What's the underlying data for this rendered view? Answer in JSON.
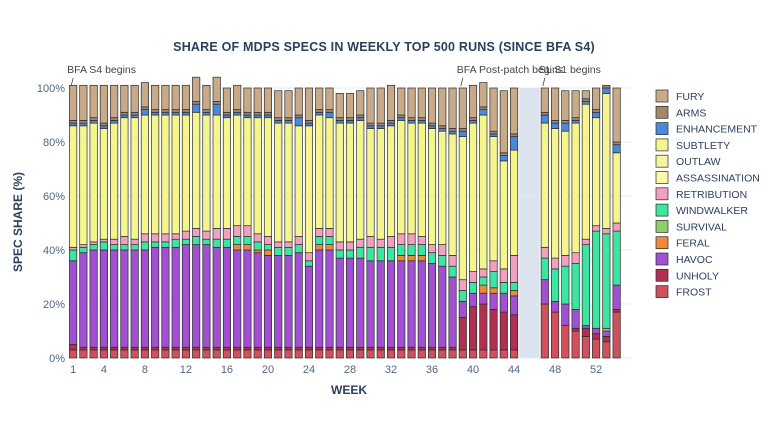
{
  "chart_data": {
    "type": "bar",
    "stacked": true,
    "title": "SHARE OF MDPS SPECS IN WEEKLY TOP 500 RUNS (SINCE BFA S4)",
    "xlabel": "WEEK",
    "ylabel": "SPEC SHARE (%)",
    "ylim": [
      0,
      100
    ],
    "xlim": [
      0.5,
      55.5
    ],
    "x_ticks": [
      1,
      4,
      8,
      12,
      16,
      20,
      24,
      28,
      32,
      36,
      40,
      44,
      48,
      52
    ],
    "y_ticks": [
      0,
      20,
      40,
      60,
      80,
      100
    ],
    "y_tick_labels": [
      "0%",
      "20%",
      "40%",
      "60%",
      "80%",
      "100%"
    ],
    "shaded_gap": [
      45,
      46
    ],
    "annotations": [
      {
        "text": "BFA S4 begins",
        "x": 1
      },
      {
        "text": "BFA Post-patch begins",
        "x": 39
      },
      {
        "text": "SL S1 begins",
        "x": 47
      }
    ],
    "legend_position": "right",
    "weeks": [
      1,
      2,
      3,
      4,
      5,
      6,
      7,
      8,
      9,
      10,
      11,
      12,
      13,
      14,
      15,
      16,
      17,
      18,
      19,
      20,
      21,
      22,
      23,
      24,
      25,
      26,
      27,
      28,
      29,
      30,
      31,
      32,
      33,
      34,
      35,
      36,
      37,
      38,
      39,
      40,
      41,
      42,
      43,
      44,
      47,
      48,
      49,
      50,
      51,
      52,
      53,
      54
    ],
    "series": [
      {
        "name": "FROST",
        "color": "#d0505c",
        "values": [
          3,
          3,
          3,
          3,
          3,
          3,
          3,
          3,
          3,
          3,
          3,
          3,
          3,
          3,
          3,
          3,
          3,
          3,
          3,
          3,
          3,
          3,
          3,
          3,
          3,
          3,
          3,
          3,
          3,
          3,
          3,
          3,
          3,
          3,
          3,
          3,
          3,
          3,
          3,
          3,
          3,
          3,
          3,
          3,
          20,
          17,
          12,
          10,
          8,
          7,
          6,
          17
        ]
      },
      {
        "name": "UNHOLY",
        "color": "#b03050",
        "values": [
          2,
          1,
          1,
          1,
          1,
          1,
          1,
          1,
          1,
          1,
          1,
          1,
          1,
          1,
          1,
          1,
          1,
          1,
          1,
          1,
          1,
          1,
          1,
          1,
          1,
          1,
          1,
          1,
          1,
          1,
          1,
          1,
          1,
          1,
          1,
          1,
          1,
          1,
          12,
          16,
          17,
          15,
          14,
          13,
          0,
          0,
          0,
          1,
          3,
          2,
          2,
          1
        ]
      },
      {
        "name": "HAVOC",
        "color": "#a050d0",
        "values": [
          31,
          35,
          36,
          36,
          36,
          36,
          36,
          36,
          37,
          37,
          37,
          38,
          38,
          38,
          37,
          37,
          36,
          36,
          35,
          34,
          34,
          34,
          35,
          30,
          36,
          36,
          33,
          33,
          33,
          32,
          32,
          32,
          32,
          32,
          32,
          31,
          30,
          26,
          6,
          5,
          4,
          6,
          7,
          7,
          9,
          4,
          8,
          7,
          1,
          2,
          2,
          9
        ]
      },
      {
        "name": "FERAL",
        "color": "#f0883a",
        "values": [
          0,
          0,
          0,
          0,
          0,
          0,
          0,
          0,
          0,
          0,
          0,
          0,
          0,
          0,
          0,
          0,
          2,
          2,
          1,
          2,
          0,
          0,
          0,
          0,
          2,
          2,
          0,
          0,
          0,
          0,
          0,
          0,
          2,
          2,
          2,
          0,
          0,
          0,
          0,
          0,
          3,
          2,
          0,
          2,
          0,
          0,
          0,
          0,
          0,
          0,
          0,
          0
        ]
      },
      {
        "name": "SURVIVAL",
        "color": "#8fce6c",
        "values": [
          0,
          0,
          0,
          0,
          0,
          0,
          0,
          0,
          0,
          0,
          0,
          0,
          0,
          0,
          0,
          0,
          0,
          0,
          0,
          0,
          0,
          0,
          0,
          0,
          0,
          0,
          0,
          0,
          0,
          0,
          0,
          0,
          0,
          0,
          0,
          0,
          0,
          0,
          0,
          0,
          0,
          0,
          0,
          0,
          0,
          0,
          0,
          0,
          0,
          0,
          1,
          0
        ]
      },
      {
        "name": "WINDWALKER",
        "color": "#3ae6a0",
        "values": [
          4,
          2,
          2,
          3,
          2,
          2,
          2,
          3,
          2,
          2,
          3,
          2,
          3,
          2,
          3,
          3,
          3,
          3,
          3,
          2,
          3,
          3,
          3,
          2,
          3,
          3,
          3,
          3,
          4,
          5,
          5,
          5,
          4,
          4,
          4,
          4,
          4,
          4,
          4,
          4,
          3,
          6,
          4,
          3,
          8,
          12,
          14,
          17,
          30,
          36,
          35,
          20
        ]
      },
      {
        "name": "RETRIBUTION",
        "color": "#f2a0c0",
        "values": [
          1,
          1,
          1,
          1,
          2,
          3,
          2,
          3,
          3,
          3,
          2,
          3,
          3,
          3,
          4,
          4,
          4,
          4,
          3,
          3,
          2,
          2,
          3,
          3,
          3,
          3,
          3,
          3,
          3,
          4,
          3,
          4,
          4,
          4,
          3,
          3,
          4,
          4,
          4,
          4,
          3,
          4,
          5,
          10,
          4,
          4,
          4,
          4,
          2,
          2,
          2,
          3
        ]
      },
      {
        "name": "ASSASSINATION",
        "color": "#fafaa8",
        "values": [
          0,
          0,
          0,
          0,
          0,
          0,
          0,
          0,
          0,
          0,
          0,
          0,
          0,
          0,
          0,
          0,
          0,
          0,
          0,
          0,
          0,
          0,
          0,
          0,
          0,
          0,
          0,
          0,
          0,
          0,
          0,
          0,
          0,
          0,
          0,
          0,
          0,
          0,
          0,
          0,
          0,
          0,
          0,
          0,
          0,
          0,
          0,
          0,
          0,
          0,
          0,
          0
        ]
      },
      {
        "name": "OUTLAW",
        "color": "#f6f6a0",
        "values": [
          0,
          0,
          0,
          0,
          0,
          0,
          0,
          0,
          0,
          0,
          0,
          0,
          0,
          0,
          0,
          0,
          0,
          0,
          0,
          0,
          0,
          0,
          0,
          0,
          0,
          0,
          0,
          0,
          0,
          0,
          0,
          0,
          0,
          0,
          0,
          0,
          0,
          0,
          0,
          0,
          0,
          0,
          0,
          0,
          0,
          0,
          0,
          0,
          0,
          0,
          0,
          0
        ]
      },
      {
        "name": "SUBTLETY",
        "color": "#f5f58e",
        "values": [
          45,
          44,
          44,
          41,
          43,
          44,
          45,
          44,
          44,
          44,
          44,
          43,
          43,
          43,
          42,
          41,
          41,
          40,
          43,
          44,
          44,
          44,
          41,
          47,
          42,
          41,
          44,
          44,
          44,
          40,
          41,
          41,
          42,
          41,
          42,
          43,
          42,
          45,
          53,
          55,
          57,
          46,
          40,
          39,
          46,
          48,
          46,
          48,
          50,
          40,
          50,
          26
        ]
      },
      {
        "name": "ENHANCEMENT",
        "color": "#4a88e0",
        "values": [
          1,
          1,
          1,
          1,
          1,
          1,
          1,
          2,
          1,
          1,
          1,
          1,
          3,
          1,
          4,
          1,
          1,
          1,
          1,
          1,
          1,
          1,
          3,
          1,
          1,
          2,
          1,
          1,
          1,
          1,
          1,
          1,
          1,
          1,
          1,
          1,
          1,
          1,
          2,
          1,
          2,
          1,
          2,
          5,
          3,
          2,
          3,
          1,
          1,
          2,
          2,
          3
        ]
      },
      {
        "name": "ARMS",
        "color": "#a28769",
        "values": [
          1,
          1,
          1,
          1,
          1,
          1,
          1,
          1,
          1,
          1,
          1,
          1,
          1,
          1,
          1,
          1,
          1,
          1,
          1,
          1,
          1,
          1,
          1,
          1,
          1,
          1,
          1,
          1,
          1,
          1,
          1,
          1,
          1,
          1,
          1,
          1,
          1,
          1,
          1,
          1,
          1,
          1,
          1,
          1,
          1,
          1,
          1,
          1,
          1,
          1,
          1,
          1
        ]
      },
      {
        "name": "FURY",
        "color": "#c8aa88",
        "values": [
          13,
          13,
          12,
          14,
          12,
          10,
          10,
          9,
          9,
          9,
          9,
          9,
          9,
          9,
          9,
          9,
          9,
          9,
          9,
          9,
          10,
          10,
          10,
          12,
          8,
          8,
          9,
          9,
          9,
          13,
          13,
          13,
          10,
          11,
          11,
          13,
          14,
          15,
          15,
          12,
          9,
          16,
          23,
          17,
          9,
          12,
          11,
          10,
          3,
          8,
          0,
          20
        ]
      }
    ]
  }
}
